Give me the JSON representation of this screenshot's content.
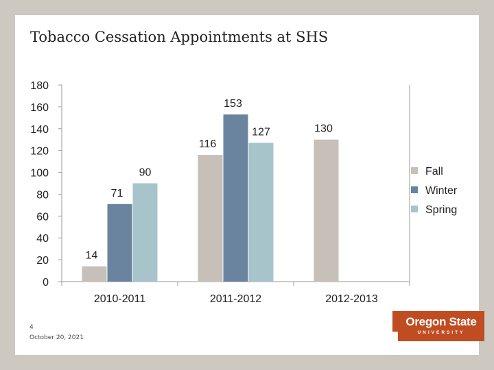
{
  "slide": {
    "title": "Tobacco Cessation Appointments at SHS",
    "page_number": "4",
    "date": "October 20, 2021",
    "logo": {
      "main": "Oregon State",
      "sub": "UNIVERSITY",
      "color": "#c04d21"
    }
  },
  "chart_data": {
    "type": "bar",
    "title": "",
    "xlabel": "",
    "ylabel": "",
    "categories": [
      "2010-2011",
      "2011-2012",
      "2012-2013"
    ],
    "series": [
      {
        "name": "Fall",
        "color": "#c7c0b8",
        "values": [
          14,
          116,
          130
        ]
      },
      {
        "name": "Winter",
        "color": "#6a849f",
        "values": [
          71,
          153,
          null
        ]
      },
      {
        "name": "Spring",
        "color": "#a7c4cb",
        "values": [
          90,
          127,
          null
        ]
      }
    ],
    "ylim": [
      0,
      180
    ],
    "yticks": [
      0,
      20,
      40,
      60,
      80,
      100,
      120,
      140,
      160,
      180
    ],
    "grid": false,
    "legend_position": "right",
    "data_labels": true
  }
}
